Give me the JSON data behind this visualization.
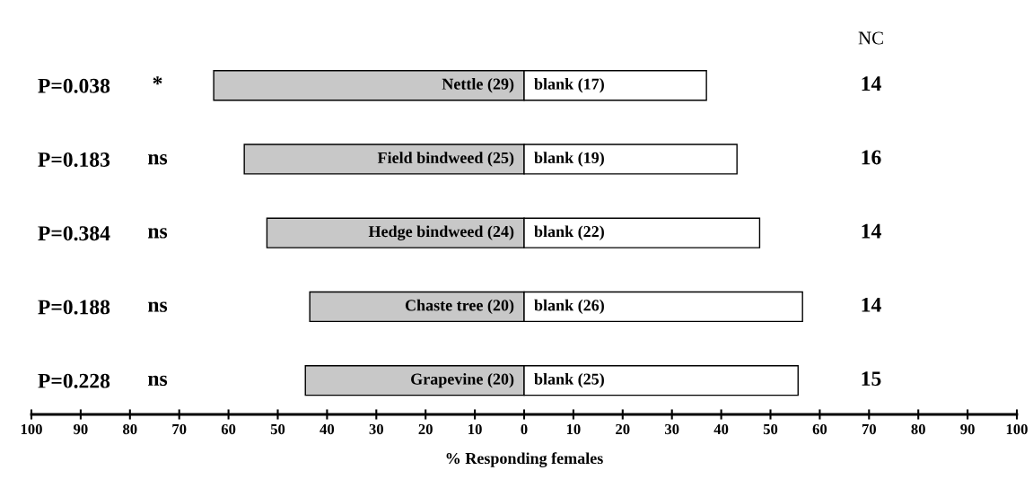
{
  "chart_data": {
    "type": "bar",
    "orientation": "horizontal",
    "stacked": true,
    "categories": [
      "P=0.038",
      "P=0.183",
      "P=0.384",
      "P=0.188",
      "P=0.228"
    ],
    "series": [
      {
        "color": "#c8c8c8",
        "values": [
          -63.0,
          -56.8,
          -52.2,
          -43.5,
          -44.4
        ]
      },
      {
        "color": "#ffffff",
        "values": [
          37.0,
          43.2,
          47.8,
          56.5,
          55.6
        ]
      }
    ],
    "xlabel": "% Responding females",
    "xlim": [
      -100,
      100
    ],
    "xticks": [
      {
        "value": -100,
        "label": "100"
      },
      {
        "value": -90,
        "label": "90"
      },
      {
        "value": -80,
        "label": "80"
      },
      {
        "value": -70,
        "label": "70"
      },
      {
        "value": -60,
        "label": "60"
      },
      {
        "value": -50,
        "label": "50"
      },
      {
        "value": -40,
        "label": "40"
      },
      {
        "value": -30,
        "label": "30"
      },
      {
        "value": -20,
        "label": "20"
      },
      {
        "value": -10,
        "label": "10"
      },
      {
        "value": 0,
        "label": "0"
      },
      {
        "value": 10,
        "label": "10"
      },
      {
        "value": 20,
        "label": "20"
      },
      {
        "value": 30,
        "label": "30"
      },
      {
        "value": 40,
        "label": "40"
      },
      {
        "value": 50,
        "label": "50"
      },
      {
        "value": 60,
        "label": "60"
      },
      {
        "value": 70,
        "label": "70"
      },
      {
        "value": 80,
        "label": "80"
      },
      {
        "value": 90,
        "label": "90"
      },
      {
        "value": 100,
        "label": "100"
      }
    ],
    "annotations": [
      "*",
      "ns",
      "ns",
      "ns",
      "ns",
      "NC",
      "14",
      "16",
      "14",
      "14",
      "15",
      "Nettle (29)",
      "Field bindweed (25)",
      "Hedge bindweed (24)",
      "Chaste tree (20)",
      "Grapevine (20)",
      "blank (17)",
      "blank (19)",
      "blank (22)",
      "blank (26)",
      "blank (25)"
    ],
    "grid": false,
    "legend": false
  }
}
